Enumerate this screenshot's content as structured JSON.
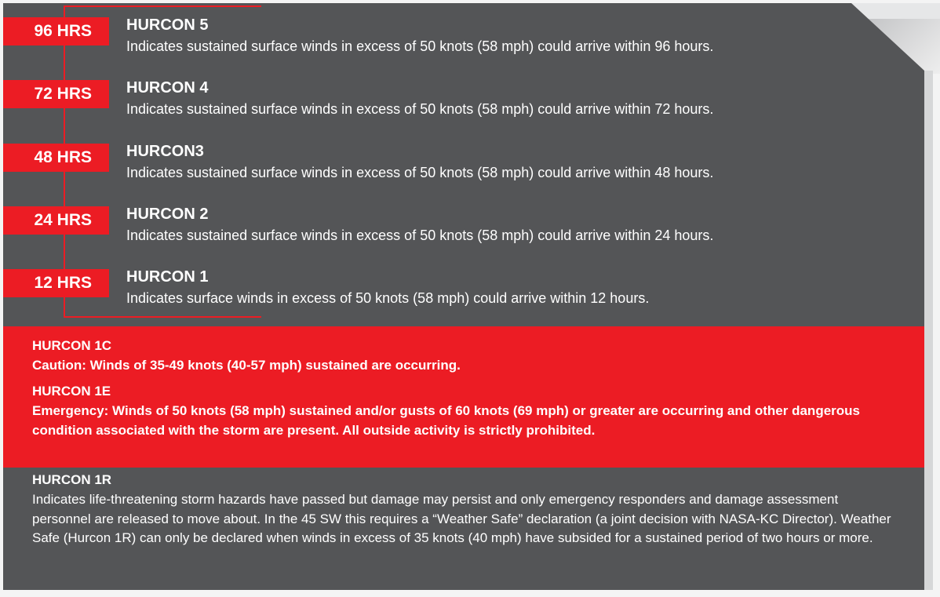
{
  "levels": [
    {
      "hours": "96 HRS",
      "title": "HURCON 5",
      "desc": "Indicates sustained surface winds in excess of 50 knots (58 mph) could arrive within 96 hours."
    },
    {
      "hours": "72 HRS",
      "title": "HURCON 4",
      "desc": "Indicates sustained surface winds in excess of 50 knots (58 mph) could arrive within 72 hours."
    },
    {
      "hours": "48 HRS",
      "title": "HURCON3",
      "desc": "Indicates sustained surface winds in excess of 50 knots (58 mph) could arrive within 48 hours."
    },
    {
      "hours": "24 HRS",
      "title": "HURCON 2",
      "desc": "Indicates sustained surface winds in excess of 50 knots (58 mph) could arrive within 24 hours."
    },
    {
      "hours": "12 HRS",
      "title": "HURCON 1",
      "desc": "Indicates surface winds in excess of 50 knots (58 mph) could arrive within 12 hours."
    }
  ],
  "h1c": {
    "title": "HURCON 1C",
    "desc": "Caution:  Winds of 35-49 knots (40-57 mph) sustained are occurring."
  },
  "h1e": {
    "title": "HURCON 1E",
    "desc": "Emergency: Winds of 50 knots (58 mph) sustained and/or gusts of 60 knots (69 mph) or greater are occurring and other dangerous condition associated with the storm are present.  All outside activity is strictly prohibited."
  },
  "h1r": {
    "title": "HURCON 1R",
    "desc": "Indicates life-threatening storm hazards have passed but damage may persist and only emergency responders and damage assessment personnel are released to move about.  In the 45 SW this requires a “Weather Safe” declaration (a joint decision with NASA-KC Director).  Weather Safe (Hurcon 1R) can only be declared when winds in excess of 35 knots (40 mph) have subsided for a sustained period of two hours or more."
  },
  "colors": {
    "panel": "#545557",
    "accent": "#ec1c24",
    "text": "#ffffff"
  }
}
